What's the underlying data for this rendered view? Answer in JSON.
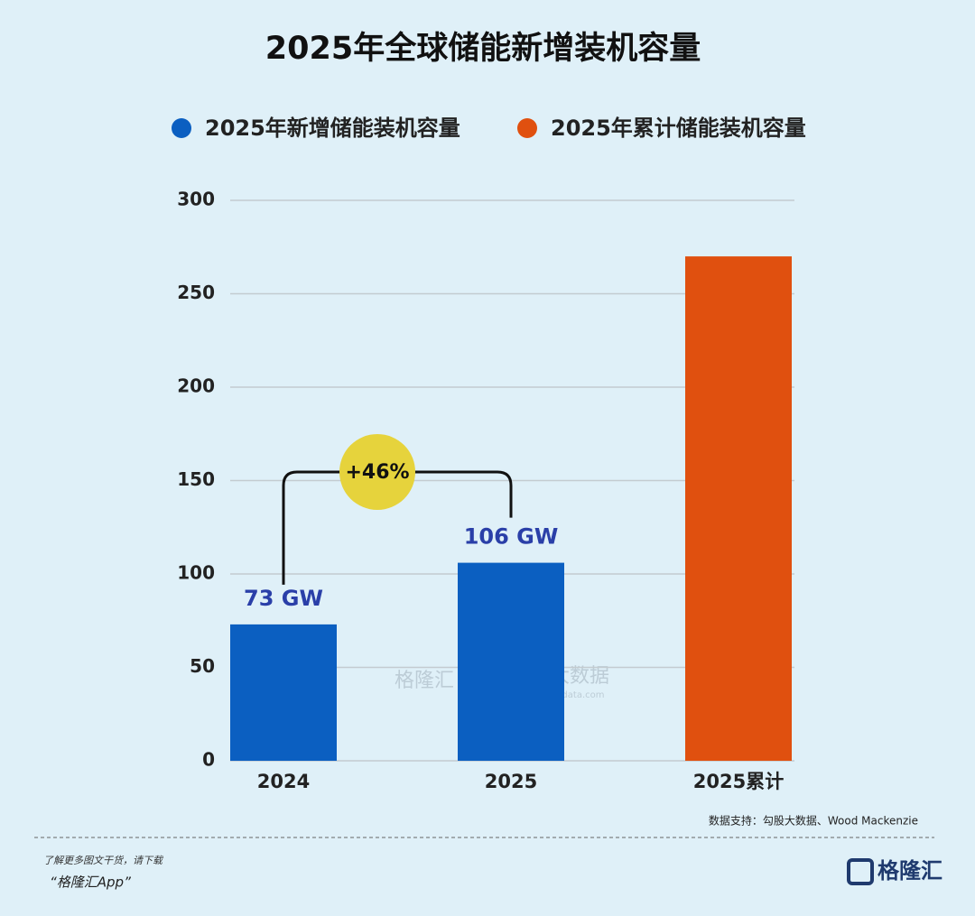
{
  "chart_data": {
    "type": "bar",
    "title": "2025年全球储能新增装机容量",
    "categories": [
      "2024",
      "2025",
      "2025累计"
    ],
    "series": [
      {
        "name": "2025年新增储能装机容量",
        "color": "#0b5fc1",
        "values": [
          73,
          106,
          null
        ],
        "value_labels": [
          "73 GW",
          "106 GW",
          null
        ]
      },
      {
        "name": "2025年累计储能装机容量",
        "color": "#e0500f",
        "values": [
          null,
          null,
          270
        ]
      }
    ],
    "ylim": [
      0,
      300
    ],
    "yticks": [
      0,
      50,
      100,
      150,
      200,
      250,
      300
    ],
    "grid": true,
    "annotation": "+46%",
    "source": "数据支持：勾股大数据、Wood Mackenzie",
    "watermarks": [
      "格隆汇",
      "勾股大数据",
      "www.gogudata.com"
    ]
  },
  "footer": {
    "line1": "了解更多图文干货，请下载",
    "line2": "“格隆汇App”",
    "logo": "格隆汇"
  }
}
